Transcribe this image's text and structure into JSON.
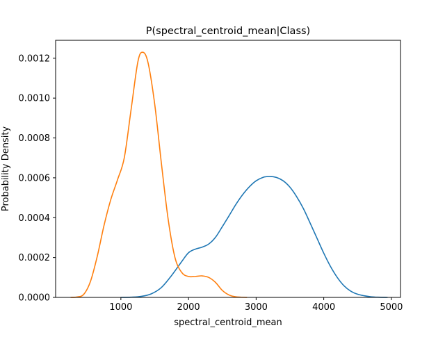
{
  "chart_data": {
    "type": "line",
    "title": "P(spectral_centroid_mean|Class)",
    "xlabel": "spectral_centroid_mean",
    "ylabel": "Probability Density",
    "xlim": [
      35,
      5135
    ],
    "ylim": [
      0,
      0.00129
    ],
    "xticks": [
      {
        "value": 1000,
        "label": "1000"
      },
      {
        "value": 2000,
        "label": "2000"
      },
      {
        "value": 3000,
        "label": "3000"
      },
      {
        "value": 4000,
        "label": "4000"
      },
      {
        "value": 5000,
        "label": "5000"
      }
    ],
    "yticks": [
      {
        "value": 0,
        "label": "0.0000"
      },
      {
        "value": 0.0002,
        "label": "0.0002"
      },
      {
        "value": 0.0004,
        "label": "0.0004"
      },
      {
        "value": 0.0006,
        "label": "0.0006"
      },
      {
        "value": 0.0008,
        "label": "0.0008"
      },
      {
        "value": 0.001,
        "label": "0.0010"
      },
      {
        "value": 0.0012,
        "label": "0.0012"
      }
    ],
    "grid": false,
    "legend": "none",
    "series": [
      {
        "color": "#1f77b4",
        "points": [
          [
            1000,
            0
          ],
          [
            1150,
            1e-06
          ],
          [
            1300,
            5e-06
          ],
          [
            1450,
            1.8e-05
          ],
          [
            1600,
            5e-05
          ],
          [
            1750,
            0.00011
          ],
          [
            1900,
            0.00018
          ],
          [
            2000,
            0.000224
          ],
          [
            2100,
            0.000242
          ],
          [
            2200,
            0.000252
          ],
          [
            2300,
            0.000268
          ],
          [
            2400,
            0.000302
          ],
          [
            2500,
            0.000355
          ],
          [
            2600,
            0.00041
          ],
          [
            2700,
            0.000466
          ],
          [
            2800,
            0.000515
          ],
          [
            2900,
            0.000555
          ],
          [
            3000,
            0.000585
          ],
          [
            3100,
            0.000602
          ],
          [
            3200,
            0.000607
          ],
          [
            3300,
            0.000602
          ],
          [
            3400,
            0.000585
          ],
          [
            3500,
            0.000553
          ],
          [
            3600,
            0.000505
          ],
          [
            3700,
            0.000445
          ],
          [
            3800,
            0.000372
          ],
          [
            3900,
            0.000297
          ],
          [
            4000,
            0.000222
          ],
          [
            4100,
            0.000155
          ],
          [
            4200,
            0.0001
          ],
          [
            4300,
            5.8e-05
          ],
          [
            4400,
            3.1e-05
          ],
          [
            4500,
            1.6e-05
          ],
          [
            4600,
            8e-06
          ],
          [
            4700,
            3e-06
          ],
          [
            4800,
            1e-06
          ],
          [
            4940,
            0
          ]
        ]
      },
      {
        "color": "#ff7f0e",
        "points": [
          [
            260,
            0
          ],
          [
            350,
            2e-06
          ],
          [
            450,
            1.5e-05
          ],
          [
            550,
            8e-05
          ],
          [
            650,
            0.000205
          ],
          [
            750,
            0.00036
          ],
          [
            850,
            0.00049
          ],
          [
            950,
            0.00059
          ],
          [
            1050,
            0.0007
          ],
          [
            1150,
            0.00094
          ],
          [
            1250,
            0.00118
          ],
          [
            1320,
            0.00123
          ],
          [
            1400,
            0.00118
          ],
          [
            1500,
            0.00097
          ],
          [
            1600,
            0.00067
          ],
          [
            1700,
            0.00039
          ],
          [
            1800,
            0.0002
          ],
          [
            1900,
            0.000125
          ],
          [
            2000,
            0.000105
          ],
          [
            2100,
            0.000105
          ],
          [
            2200,
            0.000108
          ],
          [
            2300,
            0.0001
          ],
          [
            2400,
            7.5e-05
          ],
          [
            2500,
            3.5e-05
          ],
          [
            2600,
            1.2e-05
          ],
          [
            2700,
            3e-06
          ],
          [
            2860,
            0
          ]
        ]
      }
    ]
  }
}
